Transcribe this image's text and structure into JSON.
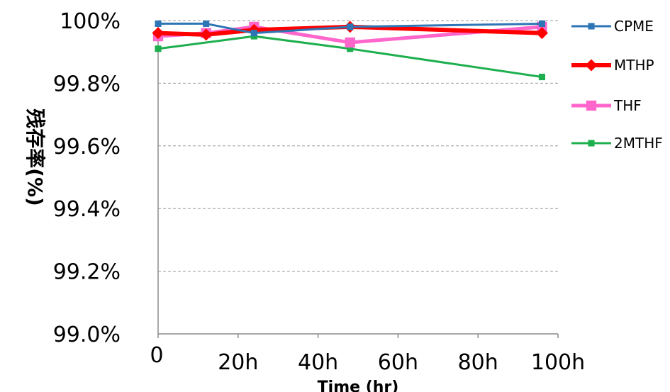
{
  "chart_data": {
    "type": "line",
    "title": "",
    "xlabel": "Time (hr)",
    "ylabel": "残存率(%)",
    "xlim": [
      0,
      100
    ],
    "ylim": [
      99.0,
      100.0
    ],
    "x_ticks": [
      0,
      20,
      40,
      60,
      80,
      100
    ],
    "x_tick_labels": [
      "0",
      "20h",
      "40h",
      "60h",
      "80h",
      "100h"
    ],
    "y_ticks": [
      99.0,
      99.2,
      99.4,
      99.6,
      99.8,
      100.0
    ],
    "y_tick_labels": [
      "99.0%",
      "99.2%",
      "99.4%",
      "99.6%",
      "99.8%",
      "100%"
    ],
    "grid": true,
    "legend_position": "right",
    "series": [
      {
        "name": "CPME",
        "color": "#2E75B6",
        "marker": "square",
        "x": [
          0,
          12,
          24,
          48,
          96
        ],
        "y": [
          99.99,
          99.99,
          99.96,
          99.98,
          99.99
        ]
      },
      {
        "name": "MTHP",
        "color": "#FF0000",
        "marker": "diamond",
        "x": [
          0,
          12,
          24,
          48,
          96
        ],
        "y": [
          99.96,
          99.955,
          99.97,
          99.98,
          99.96
        ]
      },
      {
        "name": "THF",
        "color": "#FF66CC",
        "marker": "square",
        "x": [
          0,
          12,
          24,
          48,
          96
        ],
        "y": [
          99.95,
          99.96,
          99.98,
          99.93,
          99.98
        ]
      },
      {
        "name": "2MTHF",
        "color": "#1DAF4E",
        "marker": "square",
        "x": [
          0,
          24,
          48,
          96
        ],
        "y": [
          99.91,
          99.95,
          99.91,
          99.82
        ]
      }
    ]
  }
}
